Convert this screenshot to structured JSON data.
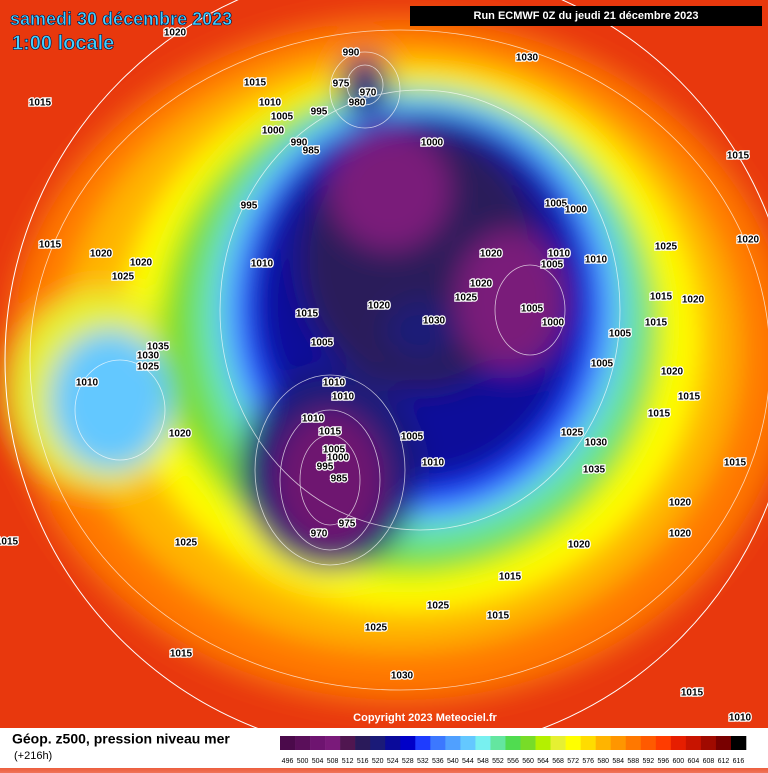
{
  "header": {
    "date": "samedi 30 décembre 2023",
    "time": "1:00 locale",
    "run": "Run ECMWF 0Z du jeudi 21 décembre 2023"
  },
  "copyright": "Copyright 2023 Meteociel.fr",
  "footer": {
    "title": "Géop. z500, pression niveau mer",
    "lead": "(+216h)"
  },
  "legend": {
    "values": [
      496,
      500,
      504,
      508,
      512,
      516,
      520,
      524,
      528,
      532,
      536,
      540,
      544,
      548,
      552,
      556,
      560,
      564,
      568,
      572,
      576,
      580,
      584,
      588,
      592,
      596,
      600,
      604,
      608,
      612,
      616
    ],
    "colors": [
      "#4b0a4b",
      "#5a0f5a",
      "#6e1470",
      "#7a1a7a",
      "#501650",
      "#2a1a5a",
      "#1a1a78",
      "#0a0a9a",
      "#0000c8",
      "#1e3cff",
      "#3c78ff",
      "#50a0ff",
      "#64c8ff",
      "#78f0f0",
      "#64e6a0",
      "#50dc50",
      "#78dc28",
      "#b4f000",
      "#e6f032",
      "#ffff00",
      "#ffdc00",
      "#ffb400",
      "#ff9600",
      "#ff7800",
      "#ff5a00",
      "#ff3c00",
      "#e61e00",
      "#c81400",
      "#a00a00",
      "#780000",
      "#000000"
    ]
  },
  "isobar_labels": [
    1020,
    1030,
    990,
    975,
    970,
    980,
    1015,
    1015,
    1010,
    1005,
    995,
    1000,
    990,
    985,
    1000,
    1015,
    995,
    1005,
    1000,
    1020,
    1015,
    1020,
    1020,
    1010,
    1025,
    1020,
    1010,
    1005,
    1010,
    1025,
    1020,
    1025,
    1015,
    1020,
    1020,
    1015,
    1005,
    1000,
    1030,
    1005,
    1015,
    1035,
    1005,
    1030,
    1025,
    1010,
    1010,
    1010,
    1005,
    1020,
    1015,
    1015,
    1010,
    1020,
    1015,
    1005,
    1025,
    1030,
    1005,
    1000,
    995,
    985,
    1010,
    1035,
    1015,
    975,
    970,
    1020,
    1020,
    1025,
    1020,
    1015,
    1025,
    1015,
    1025,
    1015,
    1030,
    1015,
    1010,
    1015
  ]
}
